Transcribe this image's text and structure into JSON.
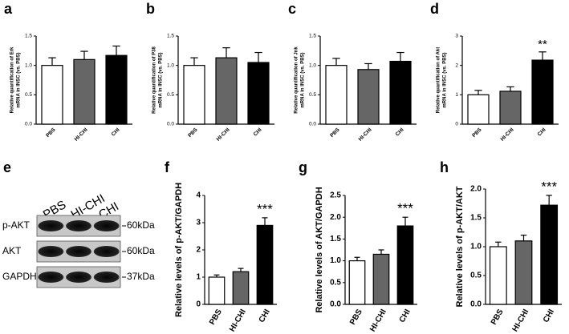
{
  "chart_data": [
    {
      "type": "bar",
      "panel": "a",
      "ylabel": [
        "Relative quantification of Erk",
        "mRNA in INSC (vs. PBS)"
      ],
      "categories": [
        "PBS",
        "HI-CHI",
        "CHI"
      ],
      "values": [
        1.0,
        1.1,
        1.17
      ],
      "errors": [
        0.13,
        0.14,
        0.16
      ],
      "colors": [
        "#ffffff",
        "#666666",
        "#000000"
      ],
      "significance": [
        null,
        null,
        null
      ],
      "ylim": [
        0,
        1.5
      ],
      "yticks": [
        {
          "value": 0,
          "label": "0.0"
        },
        {
          "value": 0.5,
          "label": "0.5"
        },
        {
          "value": 1,
          "label": "1.0"
        },
        {
          "value": 1.5,
          "label": "1.5"
        }
      ]
    },
    {
      "type": "bar",
      "panel": "b",
      "ylabel": [
        "Relative quantification of P38",
        "mRNA in INSC (vs. PBS)"
      ],
      "categories": [
        "PBS",
        "HI-CHI",
        "CHI"
      ],
      "values": [
        1.0,
        1.13,
        1.05
      ],
      "errors": [
        0.13,
        0.17,
        0.17
      ],
      "colors": [
        "#ffffff",
        "#666666",
        "#000000"
      ],
      "significance": [
        null,
        null,
        null
      ],
      "ylim": [
        0,
        1.5
      ],
      "yticks": [
        {
          "value": 0,
          "label": "0.0"
        },
        {
          "value": 0.5,
          "label": "0.5"
        },
        {
          "value": 1,
          "label": "1.0"
        },
        {
          "value": 1.5,
          "label": "1.5"
        }
      ]
    },
    {
      "type": "bar",
      "panel": "c",
      "ylabel": [
        "Relative quantification of Jnk",
        "mRNA in INSC (vs. PBS)"
      ],
      "categories": [
        "PBS",
        "HI-CHI",
        "CHI"
      ],
      "values": [
        1.0,
        0.93,
        1.07
      ],
      "errors": [
        0.12,
        0.1,
        0.15
      ],
      "colors": [
        "#ffffff",
        "#666666",
        "#000000"
      ],
      "significance": [
        null,
        null,
        null
      ],
      "ylim": [
        0,
        1.5
      ],
      "yticks": [
        {
          "value": 0,
          "label": "0.0"
        },
        {
          "value": 0.5,
          "label": "0.5"
        },
        {
          "value": 1,
          "label": "1.0"
        },
        {
          "value": 1.5,
          "label": "1.5"
        }
      ]
    },
    {
      "type": "bar",
      "panel": "d",
      "ylabel": [
        "Relative quantification of Akt",
        "mRNA in INSC (vs. PBS)"
      ],
      "categories": [
        "PBS",
        "HI-CHI",
        "CHI"
      ],
      "values": [
        1.0,
        1.12,
        2.18
      ],
      "errors": [
        0.15,
        0.15,
        0.28
      ],
      "colors": [
        "#ffffff",
        "#666666",
        "#000000"
      ],
      "significance": [
        null,
        null,
        "**"
      ],
      "ylim": [
        0,
        3
      ],
      "yticks": [
        0,
        1,
        2,
        3
      ]
    },
    {
      "type": "bar",
      "panel": "f",
      "ylabel": [
        "Relative levels of p-AKT/GAPDH"
      ],
      "categories": [
        "PBS",
        "HI-CHI",
        "CHI"
      ],
      "values": [
        1.0,
        1.2,
        2.9
      ],
      "errors": [
        0.08,
        0.12,
        0.28
      ],
      "colors": [
        "#ffffff",
        "#666666",
        "#000000"
      ],
      "significance": [
        null,
        null,
        "***"
      ],
      "ylim": [
        0,
        4
      ],
      "yticks": [
        0,
        1,
        2,
        3,
        4
      ]
    },
    {
      "type": "bar",
      "panel": "g",
      "ylabel": [
        "Relative levels of AKT/GAPDH"
      ],
      "categories": [
        "PBS",
        "HI-CHI",
        "CHI"
      ],
      "values": [
        1.0,
        1.15,
        1.8
      ],
      "errors": [
        0.08,
        0.1,
        0.2
      ],
      "colors": [
        "#ffffff",
        "#666666",
        "#000000"
      ],
      "significance": [
        null,
        null,
        "***"
      ],
      "ylim": [
        0,
        2.5
      ],
      "yticks": [
        {
          "value": 0,
          "label": "0.0"
        },
        {
          "value": 0.5,
          "label": "0.5"
        },
        {
          "value": 1,
          "label": "1.0"
        },
        {
          "value": 1.5,
          "label": "1.5"
        },
        {
          "value": 2,
          "label": "2.0"
        },
        {
          "value": 2.5,
          "label": "2.5"
        }
      ]
    },
    {
      "type": "bar",
      "panel": "h",
      "ylabel": [
        "Relative levels of p-AKT/AKT"
      ],
      "categories": [
        "PBS",
        "HI-CHI",
        "CHI"
      ],
      "values": [
        1.0,
        1.1,
        1.72
      ],
      "errors": [
        0.08,
        0.1,
        0.17
      ],
      "colors": [
        "#ffffff",
        "#666666",
        "#000000"
      ],
      "significance": [
        null,
        null,
        "***"
      ],
      "ylim": [
        0,
        2
      ],
      "yticks": [
        {
          "value": 0,
          "label": "0.0"
        },
        {
          "value": 0.5,
          "label": "0.5"
        },
        {
          "value": 1,
          "label": "1.0"
        },
        {
          "value": 1.5,
          "label": "1.5"
        },
        {
          "value": 2,
          "label": "2.0"
        }
      ]
    }
  ],
  "blot": {
    "panel": "e",
    "columns": [
      "PBS",
      "HI-CHI",
      "CHI"
    ],
    "rows": [
      "p-AKT",
      "AKT",
      "GAPDH"
    ],
    "sizes": [
      "60kDa",
      "60kDa",
      "37kDa"
    ]
  }
}
